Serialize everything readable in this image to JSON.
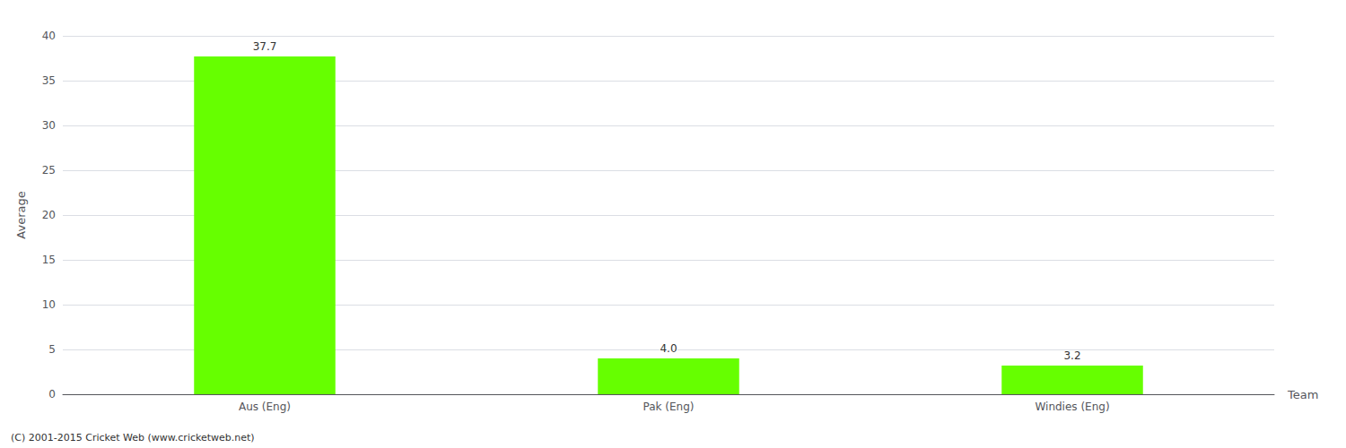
{
  "chart_data": {
    "type": "bar",
    "categories": [
      "Aus (Eng)",
      "Pak (Eng)",
      "Windies (Eng)"
    ],
    "values": [
      37.7,
      4.0,
      3.2
    ],
    "value_labels": [
      "37.7",
      "4.0",
      "3.2"
    ],
    "color": "#66ff00",
    "xlabel": "Team",
    "ylabel": "Average",
    "ylim": [
      0,
      40
    ],
    "yticks": [
      0,
      5,
      10,
      15,
      20,
      25,
      30,
      35,
      40
    ],
    "grid": true,
    "data_labels": true,
    "annotations": [
      "(C) 2001-2015 Cricket Web (www.cricketweb.net)"
    ]
  }
}
